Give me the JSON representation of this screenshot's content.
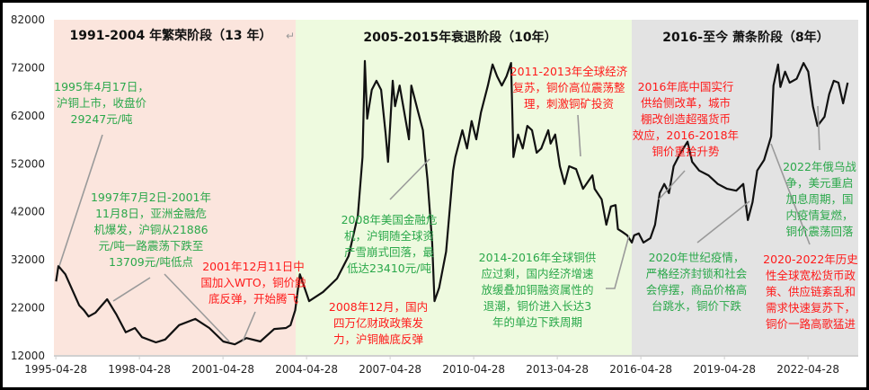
{
  "chart_data": {
    "type": "line",
    "ylim": [
      12000,
      82000
    ],
    "yticks": [
      "12000",
      "22000",
      "32000",
      "42000",
      "52000",
      "62000",
      "72000",
      "82000"
    ],
    "xticks": [
      "1995-04-28",
      "1998-04-28",
      "2001-04-28",
      "2004-04-28",
      "2007-04-28",
      "2010-04-28",
      "2013-04-28",
      "2016-04-28",
      "2019-04-28",
      "2022-04-28"
    ],
    "grid": false,
    "line_color": "#111111",
    "phases": [
      {
        "title": "1991-2004 年繁荣阶段（13 年）",
        "mark": "↵",
        "from": "1995-04",
        "to": "2004-01",
        "color": "#fbe5dd"
      },
      {
        "title": "2005-2015年衰退阶段（10年）",
        "from": "2004-01",
        "to": "2016-01",
        "color": "#eefadf"
      },
      {
        "title": "2016-至今 萧条阶段（8年）",
        "from": "2016-01",
        "to": "2024-01",
        "color": "#e3e3e3"
      }
    ],
    "series": [
      {
        "x": [
          "1995-05",
          "1995-06",
          "1995-09",
          "1996-03",
          "1996-05",
          "1996-07",
          "1996-10",
          "1997-03",
          "1997-07",
          "1997-11",
          "1998-03",
          "1998-06",
          "1998-12",
          "1999-04",
          "1999-10",
          "2000-05",
          "2000-11",
          "2001-05",
          "2001-10",
          "2002-03",
          "2002-09",
          "2003-03",
          "2003-08",
          "2003-10",
          "2003-12",
          "2004-02",
          "2004-06",
          "2004-12",
          "2005-06",
          "2005-11",
          "2006-03",
          "2006-05",
          "2006-06",
          "2006-07",
          "2006-09",
          "2006-11",
          "2007-01",
          "2007-03",
          "2007-04",
          "2007-06",
          "2007-07",
          "2007-09",
          "2007-10",
          "2008-01",
          "2008-02",
          "2008-05",
          "2008-07",
          "2008-08",
          "2008-09",
          "2008-11",
          "2008-12",
          "2009-02",
          "2009-05",
          "2009-08",
          "2009-09",
          "2009-12",
          "2010-02",
          "2010-04",
          "2010-06",
          "2010-08",
          "2010-11",
          "2011-01",
          "2011-03",
          "2011-05",
          "2011-07",
          "2011-09",
          "2011-10",
          "2011-12",
          "2012-02",
          "2012-04",
          "2012-06",
          "2012-08",
          "2012-10",
          "2013-01",
          "2013-02",
          "2013-04",
          "2013-06",
          "2013-08",
          "2013-10",
          "2014-01",
          "2014-04",
          "2014-08",
          "2014-09",
          "2014-12",
          "2015-02",
          "2015-04",
          "2015-06",
          "2015-07",
          "2015-09",
          "2015-11",
          "2016-01",
          "2016-02",
          "2016-04",
          "2016-06",
          "2016-09",
          "2016-11",
          "2017-01",
          "2017-03",
          "2017-05",
          "2017-07",
          "2017-10",
          "2018-01",
          "2018-03",
          "2018-06",
          "2018-10",
          "2019-02",
          "2019-06",
          "2019-10",
          "2020-01",
          "2020-03",
          "2020-05",
          "2020-07",
          "2020-10",
          "2021-01",
          "2021-02",
          "2021-04",
          "2021-05",
          "2021-07",
          "2021-09",
          "2021-12",
          "2022-03",
          "2022-05",
          "2022-07",
          "2022-09",
          "2022-12",
          "2023-02",
          "2023-04",
          "2023-06",
          "2023-08",
          "2023-10"
        ],
        "y": [
          27500,
          30700,
          29000,
          22500,
          21500,
          20200,
          21000,
          23800,
          20600,
          16900,
          17800,
          15900,
          14800,
          15400,
          18400,
          19700,
          17800,
          15000,
          14400,
          15700,
          15000,
          17600,
          17800,
          18400,
          21500,
          29000,
          23400,
          25300,
          28100,
          32800,
          41200,
          53400,
          73400,
          61400,
          67400,
          69300,
          67400,
          58100,
          52400,
          69300,
          64000,
          68300,
          65500,
          57100,
          68300,
          62700,
          59000,
          53400,
          48700,
          35600,
          23400,
          26200,
          33700,
          50600,
          53400,
          59000,
          55200,
          60900,
          57100,
          62700,
          68300,
          72700,
          70200,
          68300,
          70200,
          73000,
          53400,
          58100,
          55200,
          59900,
          59000,
          54300,
          55200,
          59000,
          56200,
          58100,
          51500,
          47800,
          51500,
          50900,
          46800,
          49600,
          46800,
          44600,
          39300,
          43100,
          43400,
          38400,
          37800,
          37100,
          35600,
          37100,
          37500,
          35600,
          36500,
          39300,
          45900,
          47800,
          45900,
          51500,
          54300,
          56600,
          52400,
          50600,
          49600,
          47800,
          46800,
          46400,
          47800,
          40300,
          44000,
          50600,
          52800,
          57700,
          68300,
          72700,
          68000,
          71200,
          68900,
          69700,
          73000,
          71200,
          64000,
          59900,
          61800,
          66500,
          69300,
          68900,
          64600,
          68900
        ]
      }
    ],
    "annotations": [
      {
        "color": "#2aa84a",
        "lines": [
          "1995年4月17日，",
          "沪铜上市，收盘价",
          "29247元/吨"
        ]
      },
      {
        "color": "#2aa84a",
        "lines": [
          "1997年7月2日-2001年",
          "11月8日，亚洲金融危",
          "机爆发，沪铜从21886",
          "元/吨一路震荡下跌至",
          "13709元/吨低点"
        ]
      },
      {
        "color": "#ff1a1a",
        "lines": [
          "2001年12月11日中",
          "国加入WTO，铜价触",
          "底反弹，开始腾飞"
        ]
      },
      {
        "color": "#2aa84a",
        "lines": [
          "2008年美国金融危",
          "机，沪铜随全球资",
          "产雪崩式回落，最",
          "低达23410元/吨"
        ]
      },
      {
        "color": "#ff1a1a",
        "lines": [
          "2008年12月，国内",
          "四万亿财政政策发",
          "力，沪铜触底反弹"
        ]
      },
      {
        "color": "#ff1a1a",
        "lines": [
          "2011-2013年全球经济",
          "复苏，铜价高位震荡整",
          "理，刺激铜矿投资"
        ]
      },
      {
        "color": "#2aa84a",
        "lines": [
          "2014-2016年全球铜供",
          "应过剩，国内经济增速",
          "放缓叠加铜融资属性的",
          "退潮，铜价进入长达3",
          "年的单边下跌周期"
        ]
      },
      {
        "color": "#ff1a1a",
        "lines": [
          "2016年底中国实行",
          "供给侧改革，城市",
          "棚改创造超强货币",
          "效应，2016-2018年",
          "铜价重拾升势"
        ]
      },
      {
        "color": "#2aa84a",
        "lines": [
          "2022年俄乌战",
          "争，美元重启",
          "加息周期，国",
          "内疫情复燃，",
          "铜价震荡回落"
        ]
      },
      {
        "color": "#2aa84a",
        "lines": [
          "2020年世纪疫情，",
          "严格经济封锁和社会",
          "会停摆，商品价格高",
          "台跳水，铜价下跌"
        ]
      },
      {
        "color": "#ff1a1a",
        "lines": [
          "2020-2022年历史",
          "性全球宽松货币政",
          "策、供应链紊乱和",
          "需求快速复苏下，",
          "铜价一路高歌猛进"
        ]
      }
    ]
  }
}
